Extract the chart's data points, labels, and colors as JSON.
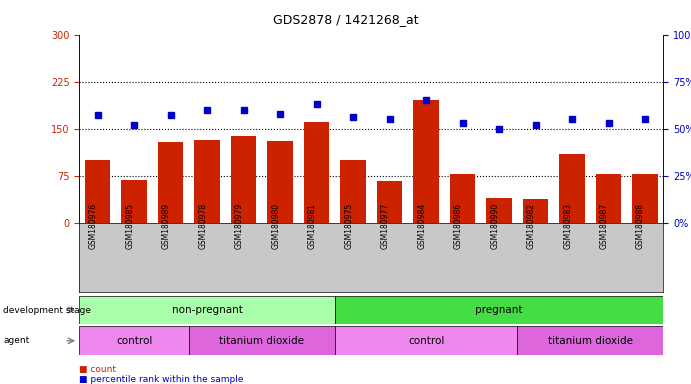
{
  "title": "GDS2878 / 1421268_at",
  "samples": [
    "GSM180976",
    "GSM180985",
    "GSM180989",
    "GSM180978",
    "GSM180979",
    "GSM180980",
    "GSM180981",
    "GSM180975",
    "GSM180977",
    "GSM180984",
    "GSM180986",
    "GSM180990",
    "GSM180982",
    "GSM180983",
    "GSM180987",
    "GSM180988"
  ],
  "counts": [
    100,
    68,
    128,
    132,
    138,
    130,
    160,
    100,
    67,
    195,
    78,
    40,
    38,
    110,
    78,
    78
  ],
  "percentiles": [
    57,
    52,
    57,
    60,
    60,
    58,
    63,
    56,
    55,
    65,
    53,
    50,
    52,
    55,
    53,
    55
  ],
  "count_ylim": [
    0,
    300
  ],
  "percentile_ylim": [
    0,
    100
  ],
  "count_yticks": [
    0,
    75,
    150,
    225,
    300
  ],
  "percentile_yticks": [
    0,
    25,
    50,
    75,
    100
  ],
  "groups": {
    "development_stage": [
      {
        "label": "non-pregnant",
        "start": 0,
        "end": 7,
        "color": "#AAFFAA"
      },
      {
        "label": "pregnant",
        "start": 7,
        "end": 16,
        "color": "#44DD44"
      }
    ],
    "agent": [
      {
        "label": "control",
        "start": 0,
        "end": 3,
        "color": "#EE88EE"
      },
      {
        "label": "titanium dioxide",
        "start": 3,
        "end": 7,
        "color": "#DD66DD"
      },
      {
        "label": "control",
        "start": 7,
        "end": 12,
        "color": "#EE88EE"
      },
      {
        "label": "titanium dioxide",
        "start": 12,
        "end": 16,
        "color": "#DD66DD"
      }
    ]
  },
  "bar_color": "#CC2200",
  "dot_color": "#0000CC",
  "bg_color": "#FFFFFF",
  "tick_area_color": "#C8C8C8",
  "count_label_color": "#CC2200",
  "percentile_label_color": "#0000CC"
}
